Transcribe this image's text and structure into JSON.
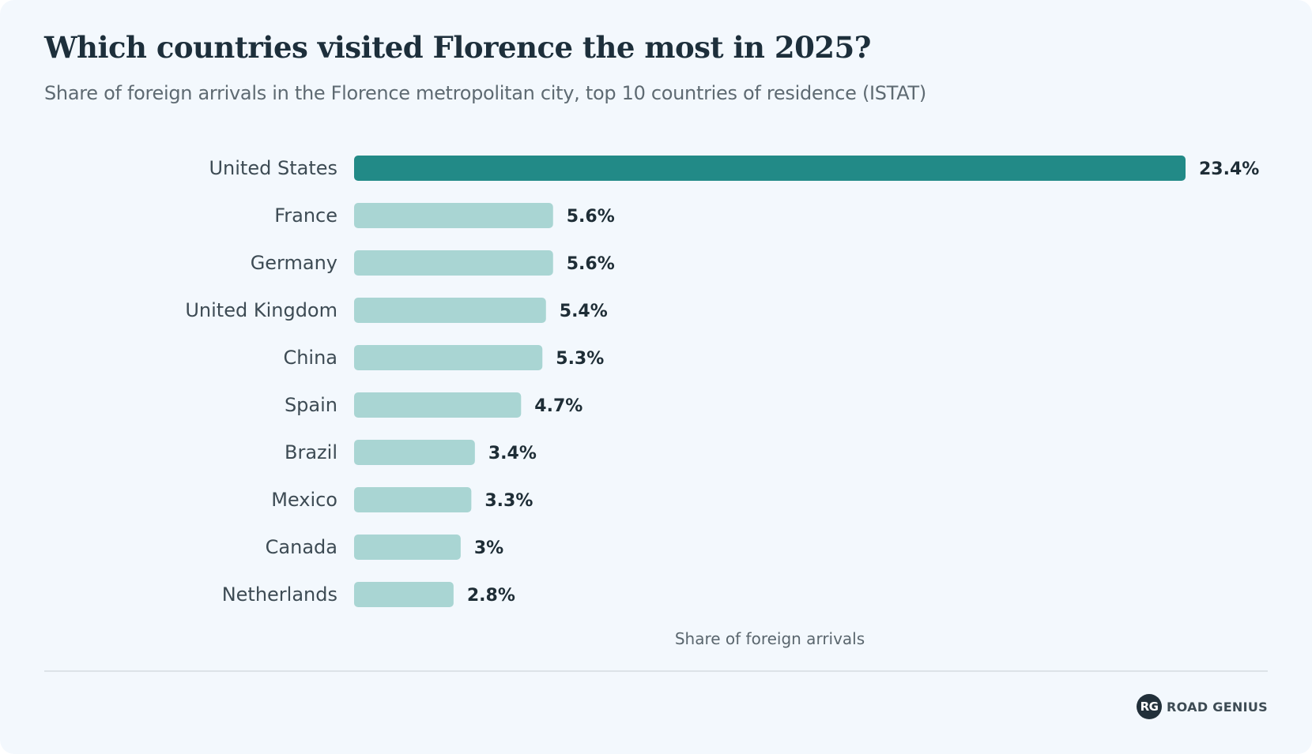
{
  "header": {
    "title": "Which countries visited Florence the most in 2025?",
    "subtitle": "Share of foreign arrivals in the Florence metropolitan city, top 10 countries of residence (ISTAT)"
  },
  "chart_data": {
    "type": "bar",
    "orientation": "horizontal",
    "categories": [
      "United States",
      "France",
      "Germany",
      "United Kingdom",
      "China",
      "Spain",
      "Brazil",
      "Mexico",
      "Canada",
      "Netherlands"
    ],
    "values": [
      23.4,
      5.6,
      5.6,
      5.4,
      5.3,
      4.7,
      3.4,
      3.3,
      3.0,
      2.8
    ],
    "value_labels": [
      "23.4%",
      "5.6%",
      "5.6%",
      "5.4%",
      "5.3%",
      "4.7%",
      "3.4%",
      "3.3%",
      "3%",
      "2.8%"
    ],
    "xlabel": "Share of foreign arrivals",
    "ylabel": "",
    "xlim": [
      0,
      23.4
    ],
    "grid": false,
    "colors": {
      "highlight": "#228a87",
      "default": "#a9d5d3"
    }
  },
  "footer": {
    "brand_badge": "RG",
    "brand_name": "ROAD GENIUS",
    "brand_colors": {
      "badge": "#22303a",
      "text": "#3d4b54"
    }
  }
}
